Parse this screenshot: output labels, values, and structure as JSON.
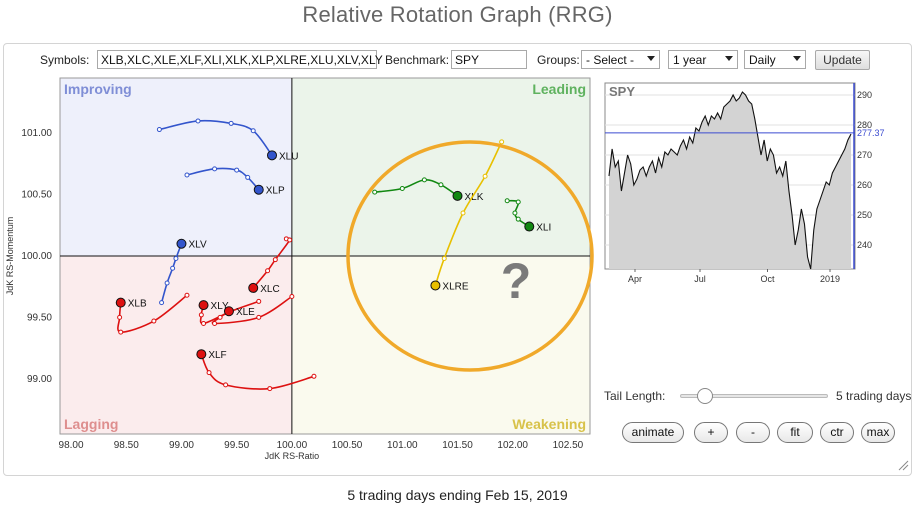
{
  "page_title": "Relative Rotation Graph (RRG)",
  "controls": {
    "symbols_label": "Symbols:",
    "symbols_value": "XLB,XLC,XLE,XLF,XLI,XLK,XLP,XLRE,XLU,XLV,XLY",
    "benchmark_label": "Benchmark:",
    "benchmark_value": "SPY",
    "groups_label": "Groups:",
    "groups_value": "- Select -",
    "period_value": "1 year",
    "interval_value": "Daily",
    "update_label": "Update"
  },
  "rrg": {
    "quadrants": {
      "improving": "Improving",
      "leading": "Leading",
      "lagging": "Lagging",
      "weakening": "Weakening"
    },
    "colors": {
      "improving_bg": "#eef0fb",
      "leading_bg": "#ebf4ea",
      "lagging_bg": "#fbeced",
      "weakening_bg": "#fafaee",
      "improving_text": "#7f8ed6",
      "leading_text": "#5fb25f",
      "lagging_text": "#de8e8e",
      "weakening_text": "#d8c24a",
      "highlight_circle": "#f0a92a"
    },
    "x_axis_label": "JdK RS-Ratio",
    "y_axis_label": "JdK RS-Momentum",
    "x_ticks": [
      "98.00",
      "98.50",
      "99.00",
      "99.50",
      "100.00",
      "100.50",
      "101.00",
      "101.50",
      "102.00",
      "102.50"
    ],
    "y_ticks": [
      "101.00",
      "100.50",
      "100.00",
      "99.50",
      "99.00"
    ],
    "question_mark": "?",
    "tails": [
      {
        "symbol": "XLU",
        "color": "#3355cc",
        "points": [
          [
            98.8,
            101.03
          ],
          [
            99.15,
            101.1
          ],
          [
            99.45,
            101.08
          ],
          [
            99.65,
            101.02
          ],
          [
            99.82,
            100.82
          ]
        ]
      },
      {
        "symbol": "XLP",
        "color": "#3355cc",
        "points": [
          [
            99.05,
            100.66
          ],
          [
            99.3,
            100.71
          ],
          [
            99.5,
            100.7
          ],
          [
            99.6,
            100.64
          ],
          [
            99.7,
            100.54
          ]
        ]
      },
      {
        "symbol": "XLV",
        "color": "#3355cc",
        "points": [
          [
            98.82,
            99.62
          ],
          [
            98.87,
            99.78
          ],
          [
            98.92,
            99.9
          ],
          [
            98.95,
            99.98
          ],
          [
            99.0,
            100.1
          ]
        ]
      },
      {
        "symbol": "XLB",
        "color": "#dd1111",
        "points": [
          [
            99.05,
            99.68
          ],
          [
            98.75,
            99.47
          ],
          [
            98.45,
            99.38
          ],
          [
            98.44,
            99.5
          ],
          [
            98.45,
            99.62
          ]
        ]
      },
      {
        "symbol": "XLC",
        "color": "#dd1111",
        "points": [
          [
            99.95,
            100.14
          ],
          [
            99.98,
            100.13
          ],
          [
            99.85,
            99.97
          ],
          [
            99.78,
            99.88
          ],
          [
            99.65,
            99.74
          ]
        ]
      },
      {
        "symbol": "XLY",
        "color": "#dd1111",
        "points": [
          [
            99.7,
            99.63
          ],
          [
            99.45,
            99.55
          ],
          [
            99.2,
            99.45
          ],
          [
            99.18,
            99.52
          ],
          [
            99.2,
            99.6
          ]
        ]
      },
      {
        "symbol": "XLE",
        "color": "#dd1111",
        "points": [
          [
            100.0,
            99.67
          ],
          [
            99.7,
            99.5
          ],
          [
            99.3,
            99.45
          ],
          [
            99.35,
            99.5
          ],
          [
            99.43,
            99.55
          ]
        ]
      },
      {
        "symbol": "XLF",
        "color": "#dd1111",
        "points": [
          [
            100.2,
            99.02
          ],
          [
            99.8,
            98.92
          ],
          [
            99.4,
            98.95
          ],
          [
            99.25,
            99.05
          ],
          [
            99.18,
            99.2
          ]
        ]
      },
      {
        "symbol": "XLK",
        "color": "#118811",
        "points": [
          [
            100.75,
            100.52
          ],
          [
            101.0,
            100.55
          ],
          [
            101.2,
            100.62
          ],
          [
            101.35,
            100.58
          ],
          [
            101.5,
            100.49
          ]
        ]
      },
      {
        "symbol": "XLI",
        "color": "#118811",
        "points": [
          [
            101.95,
            100.45
          ],
          [
            102.05,
            100.44
          ],
          [
            102.02,
            100.35
          ],
          [
            102.05,
            100.3
          ],
          [
            102.15,
            100.24
          ]
        ]
      },
      {
        "symbol": "XLRE",
        "color": "#e8c000",
        "points": [
          [
            101.9,
            100.93
          ],
          [
            101.75,
            100.65
          ],
          [
            101.55,
            100.35
          ],
          [
            101.38,
            99.98
          ],
          [
            101.3,
            99.76
          ]
        ]
      }
    ]
  },
  "spy_chart": {
    "title": "SPY",
    "last_value": "277.37",
    "y_ticks": [
      "290",
      "280",
      "270",
      "260",
      "250",
      "240"
    ],
    "x_ticks": [
      "Apr",
      "Jul",
      "Oct",
      "2019"
    ],
    "price_series": [
      263,
      272,
      266,
      268,
      258,
      264,
      270,
      267,
      260,
      262,
      265,
      266,
      263,
      266,
      268,
      264,
      269,
      266,
      271,
      270,
      272,
      271,
      270,
      273,
      275,
      272,
      276,
      274,
      279,
      278,
      281,
      283,
      280,
      283,
      282,
      284,
      282,
      286,
      287,
      288,
      290,
      288,
      289,
      291,
      290,
      288,
      287,
      282,
      276,
      270,
      275,
      268,
      272,
      270,
      264,
      266,
      263,
      268,
      258,
      250,
      240,
      245,
      252,
      247,
      236,
      232,
      245,
      252,
      255,
      258,
      261,
      260,
      264,
      266,
      268,
      270,
      272,
      275,
      277
    ]
  },
  "tail_length": {
    "label": "Tail Length:",
    "value": "5 trading days"
  },
  "buttons": {
    "animate": "animate",
    "plus": "+",
    "minus": "-",
    "fit": "fit",
    "ctr": "ctr",
    "max": "max"
  },
  "footer_text": "5 trading days ending Feb 15, 2019"
}
